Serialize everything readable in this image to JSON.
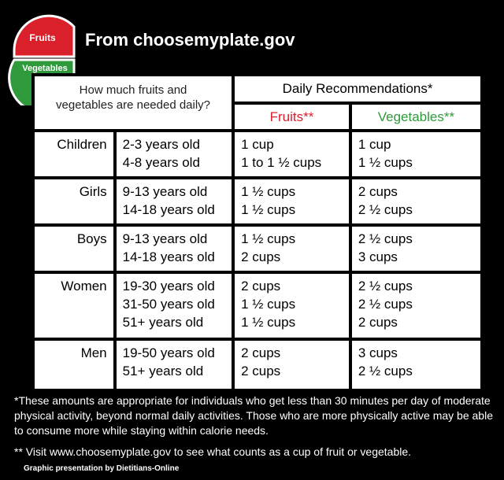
{
  "header": {
    "logo": {
      "fruits": "Fruits",
      "vegetables": "Vegetables"
    },
    "title": "From choosemyplate.gov"
  },
  "table": {
    "question": [
      "How much fruits and",
      "vegetables are needed daily?"
    ],
    "recommendations": "Daily Recommendations*",
    "fruits_header": "Fruits**",
    "vegetables_header": "Vegetables**",
    "rows": [
      {
        "group": "Children",
        "ages": [
          "2-3 years old",
          "4-8 years old"
        ],
        "fruits": [
          "1 cup",
          "1 to 1 ½ cups"
        ],
        "vegetables": [
          "1 cup",
          "1 ½ cups"
        ]
      },
      {
        "group": "Girls",
        "ages": [
          "9-13 years old",
          "14-18 years old"
        ],
        "fruits": [
          "1 ½ cups",
          "1 ½ cups"
        ],
        "vegetables": [
          "2 cups",
          "2 ½ cups"
        ]
      },
      {
        "group": "Boys",
        "ages": [
          "9-13 years old",
          "14-18 years old"
        ],
        "fruits": [
          "1 ½ cups",
          "2 cups"
        ],
        "vegetables": [
          "2 ½ cups",
          "3 cups"
        ]
      },
      {
        "group": "Women",
        "ages": [
          "19-30 years old",
          "31-50 years old",
          "51+ years old"
        ],
        "fruits": [
          "2 cups",
          "1 ½ cups",
          "1 ½ cups"
        ],
        "vegetables": [
          "2 ½ cups",
          "2 ½ cups",
          "2 cups"
        ]
      },
      {
        "group": "Men",
        "ages": [
          "19-50 years old",
          "51+ years old"
        ],
        "fruits": [
          "2 cups",
          "2 cups"
        ],
        "vegetables": [
          "3 cups",
          "2 ½ cups"
        ]
      }
    ]
  },
  "footnotes": [
    "*These amounts are appropriate for individuals who get less than 30 minutes per day of moderate physical activity, beyond normal daily activities. Those who are more physically active may be able to consume more while staying within calorie needs.",
    "** Visit www.choosemyplate.gov to see what counts as a cup of fruit or vegetable."
  ],
  "credit": "Graphic presentation by Dietitians-Online"
}
